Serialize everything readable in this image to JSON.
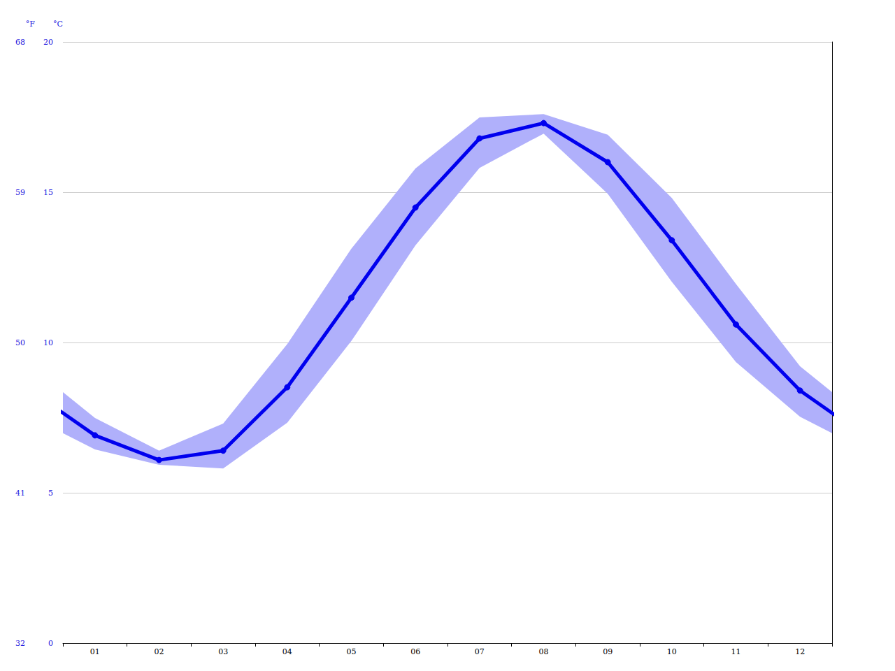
{
  "chart_data": {
    "type": "line",
    "categories": [
      "01",
      "02",
      "03",
      "04",
      "05",
      "06",
      "07",
      "08",
      "09",
      "10",
      "11",
      "12"
    ],
    "values": [
      6.91,
      6.09,
      6.4,
      8.51,
      11.49,
      14.49,
      16.79,
      17.3,
      16.0,
      13.4,
      10.6,
      8.4
    ],
    "low": [
      6.44,
      5.93,
      5.81,
      7.33,
      10.05,
      13.23,
      15.81,
      16.95,
      14.95,
      12.02,
      9.35,
      7.53
    ],
    "high": [
      7.49,
      6.4,
      7.3,
      9.95,
      13.12,
      15.79,
      17.49,
      17.6,
      16.91,
      14.81,
      11.95,
      9.21
    ],
    "color": "#0000ee",
    "ylabel": "°C",
    "ylim": [
      0,
      20
    ],
    "yticks": [
      0,
      5,
      10,
      15,
      20
    ],
    "y2label": "°F",
    "y2lim": [
      32,
      68
    ],
    "y2ticks": [
      32,
      41,
      50,
      59,
      68
    ],
    "marker": "circle",
    "grid": true
  }
}
